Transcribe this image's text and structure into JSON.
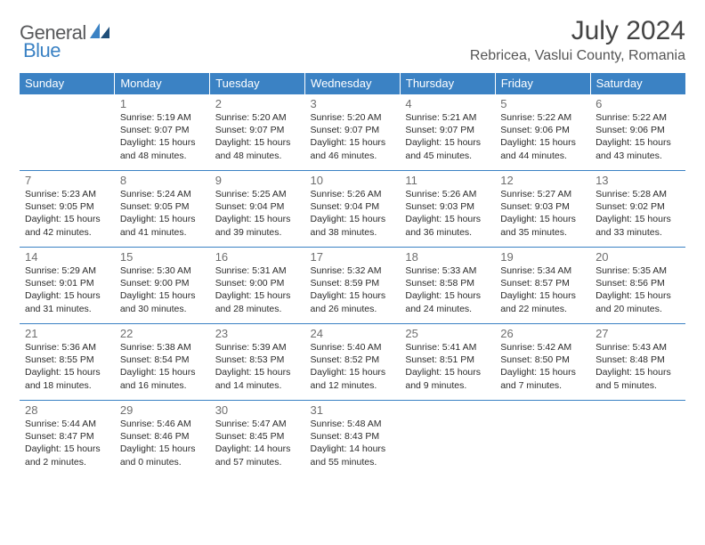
{
  "logo": {
    "word1": "General",
    "word2": "Blue"
  },
  "header": {
    "title": "July 2024",
    "location": "Rebricea, Vaslui County, Romania"
  },
  "colors": {
    "accent": "#3b82c4",
    "header_bg": "#3b82c4",
    "header_text": "#ffffff",
    "body_text": "#2b2b2b",
    "daynum_text": "#6f6f6f",
    "logo_gray": "#58595b"
  },
  "table": {
    "type": "calendar",
    "columns": [
      "Sunday",
      "Monday",
      "Tuesday",
      "Wednesday",
      "Thursday",
      "Friday",
      "Saturday"
    ],
    "column_count": 7,
    "row_count": 5,
    "first_day_column_index": 1,
    "days": [
      {
        "n": 1,
        "sunrise": "5:19 AM",
        "sunset": "9:07 PM",
        "daylight": "15 hours and 48 minutes."
      },
      {
        "n": 2,
        "sunrise": "5:20 AM",
        "sunset": "9:07 PM",
        "daylight": "15 hours and 48 minutes."
      },
      {
        "n": 3,
        "sunrise": "5:20 AM",
        "sunset": "9:07 PM",
        "daylight": "15 hours and 46 minutes."
      },
      {
        "n": 4,
        "sunrise": "5:21 AM",
        "sunset": "9:07 PM",
        "daylight": "15 hours and 45 minutes."
      },
      {
        "n": 5,
        "sunrise": "5:22 AM",
        "sunset": "9:06 PM",
        "daylight": "15 hours and 44 minutes."
      },
      {
        "n": 6,
        "sunrise": "5:22 AM",
        "sunset": "9:06 PM",
        "daylight": "15 hours and 43 minutes."
      },
      {
        "n": 7,
        "sunrise": "5:23 AM",
        "sunset": "9:05 PM",
        "daylight": "15 hours and 42 minutes."
      },
      {
        "n": 8,
        "sunrise": "5:24 AM",
        "sunset": "9:05 PM",
        "daylight": "15 hours and 41 minutes."
      },
      {
        "n": 9,
        "sunrise": "5:25 AM",
        "sunset": "9:04 PM",
        "daylight": "15 hours and 39 minutes."
      },
      {
        "n": 10,
        "sunrise": "5:26 AM",
        "sunset": "9:04 PM",
        "daylight": "15 hours and 38 minutes."
      },
      {
        "n": 11,
        "sunrise": "5:26 AM",
        "sunset": "9:03 PM",
        "daylight": "15 hours and 36 minutes."
      },
      {
        "n": 12,
        "sunrise": "5:27 AM",
        "sunset": "9:03 PM",
        "daylight": "15 hours and 35 minutes."
      },
      {
        "n": 13,
        "sunrise": "5:28 AM",
        "sunset": "9:02 PM",
        "daylight": "15 hours and 33 minutes."
      },
      {
        "n": 14,
        "sunrise": "5:29 AM",
        "sunset": "9:01 PM",
        "daylight": "15 hours and 31 minutes."
      },
      {
        "n": 15,
        "sunrise": "5:30 AM",
        "sunset": "9:00 PM",
        "daylight": "15 hours and 30 minutes."
      },
      {
        "n": 16,
        "sunrise": "5:31 AM",
        "sunset": "9:00 PM",
        "daylight": "15 hours and 28 minutes."
      },
      {
        "n": 17,
        "sunrise": "5:32 AM",
        "sunset": "8:59 PM",
        "daylight": "15 hours and 26 minutes."
      },
      {
        "n": 18,
        "sunrise": "5:33 AM",
        "sunset": "8:58 PM",
        "daylight": "15 hours and 24 minutes."
      },
      {
        "n": 19,
        "sunrise": "5:34 AM",
        "sunset": "8:57 PM",
        "daylight": "15 hours and 22 minutes."
      },
      {
        "n": 20,
        "sunrise": "5:35 AM",
        "sunset": "8:56 PM",
        "daylight": "15 hours and 20 minutes."
      },
      {
        "n": 21,
        "sunrise": "5:36 AM",
        "sunset": "8:55 PM",
        "daylight": "15 hours and 18 minutes."
      },
      {
        "n": 22,
        "sunrise": "5:38 AM",
        "sunset": "8:54 PM",
        "daylight": "15 hours and 16 minutes."
      },
      {
        "n": 23,
        "sunrise": "5:39 AM",
        "sunset": "8:53 PM",
        "daylight": "15 hours and 14 minutes."
      },
      {
        "n": 24,
        "sunrise": "5:40 AM",
        "sunset": "8:52 PM",
        "daylight": "15 hours and 12 minutes."
      },
      {
        "n": 25,
        "sunrise": "5:41 AM",
        "sunset": "8:51 PM",
        "daylight": "15 hours and 9 minutes."
      },
      {
        "n": 26,
        "sunrise": "5:42 AM",
        "sunset": "8:50 PM",
        "daylight": "15 hours and 7 minutes."
      },
      {
        "n": 27,
        "sunrise": "5:43 AM",
        "sunset": "8:48 PM",
        "daylight": "15 hours and 5 minutes."
      },
      {
        "n": 28,
        "sunrise": "5:44 AM",
        "sunset": "8:47 PM",
        "daylight": "15 hours and 2 minutes."
      },
      {
        "n": 29,
        "sunrise": "5:46 AM",
        "sunset": "8:46 PM",
        "daylight": "15 hours and 0 minutes."
      },
      {
        "n": 30,
        "sunrise": "5:47 AM",
        "sunset": "8:45 PM",
        "daylight": "14 hours and 57 minutes."
      },
      {
        "n": 31,
        "sunrise": "5:48 AM",
        "sunset": "8:43 PM",
        "daylight": "14 hours and 55 minutes."
      }
    ],
    "labels": {
      "sunrise_prefix": "Sunrise: ",
      "sunset_prefix": "Sunset: ",
      "daylight_prefix": "Daylight: "
    }
  }
}
